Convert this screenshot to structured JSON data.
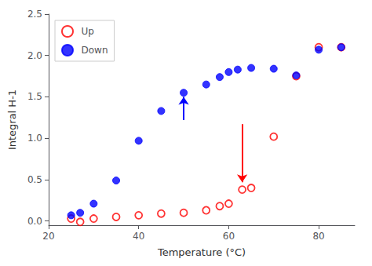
{
  "chart_data": {
    "type": "scatter",
    "xlabel": "Temperature (°C)",
    "ylabel": "Integral H-1",
    "xlim": [
      20,
      88
    ],
    "ylim": [
      -0.05,
      2.5
    ],
    "xticks": [
      20,
      40,
      60,
      80
    ],
    "yticks": [
      {
        "value": 0,
        "label": "0.0"
      },
      0.5,
      {
        "value": 1,
        "label": "1.0"
      },
      1.5,
      {
        "value": 2,
        "label": "2.0"
      },
      2.5
    ],
    "grid": false,
    "legend": "upper left",
    "series": [
      {
        "name": "Up",
        "color": "#ff0000",
        "marker": "open_circle",
        "x": [
          25,
          27,
          30,
          35,
          40,
          45,
          50,
          55,
          58,
          60,
          63,
          65,
          70,
          75,
          80,
          85
        ],
        "values": [
          0.03,
          -0.01,
          0.03,
          0.05,
          0.07,
          0.09,
          0.1,
          0.13,
          0.18,
          0.21,
          0.38,
          0.4,
          1.02,
          1.75,
          2.1,
          2.1
        ]
      },
      {
        "name": "Down",
        "color": "#0000ff",
        "marker": "circle",
        "x": [
          25,
          27,
          30,
          35,
          40,
          45,
          50,
          55,
          58,
          60,
          62,
          65,
          70,
          75,
          80,
          85
        ],
        "values": [
          0.07,
          0.1,
          0.21,
          0.49,
          0.97,
          1.33,
          1.55,
          1.65,
          1.74,
          1.8,
          1.83,
          1.85,
          1.84,
          1.76,
          2.07,
          2.1
        ]
      }
    ],
    "arrows": [
      {
        "x": 50,
        "y_start": 1.22,
        "y_end": 1.5,
        "color": "#0000ff"
      },
      {
        "x": 63,
        "y_start": 1.17,
        "y_end": 0.47,
        "color": "#ff0000"
      }
    ]
  }
}
